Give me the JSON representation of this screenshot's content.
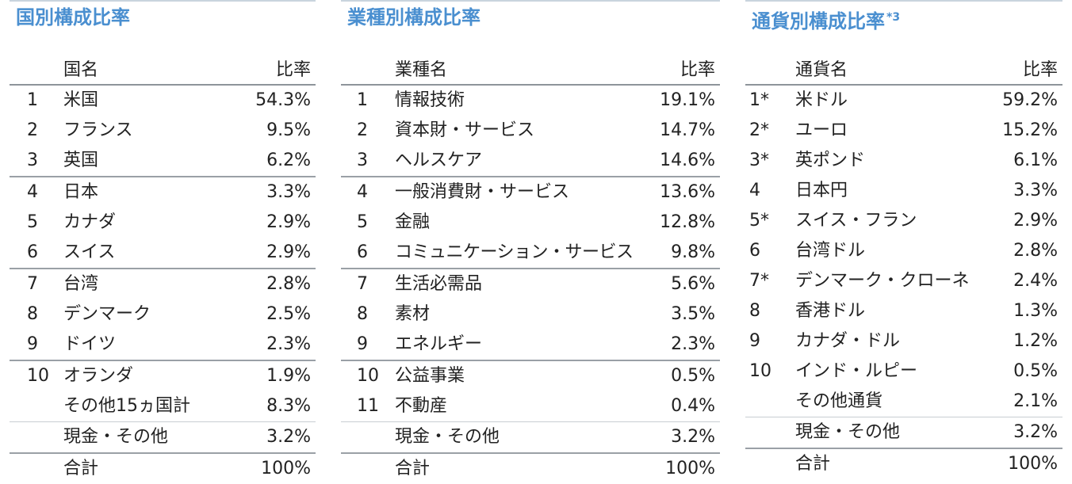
{
  "panels": [
    {
      "title": "国別構成比率",
      "title_note": "",
      "header": {
        "name": "国名",
        "ratio": "比率"
      },
      "rows": [
        {
          "rank": "1",
          "name": "米国",
          "ratio": "54.3%"
        },
        {
          "rank": "2",
          "name": "フランス",
          "ratio": "9.5%"
        },
        {
          "rank": "3",
          "name": "英国",
          "ratio": "6.2%"
        },
        {
          "rank": "4",
          "name": "日本",
          "ratio": "3.3%"
        },
        {
          "rank": "5",
          "name": "カナダ",
          "ratio": "2.9%"
        },
        {
          "rank": "6",
          "name": "スイス",
          "ratio": "2.9%"
        },
        {
          "rank": "7",
          "name": "台湾",
          "ratio": "2.8%"
        },
        {
          "rank": "8",
          "name": "デンマーク",
          "ratio": "2.5%"
        },
        {
          "rank": "9",
          "name": "ドイツ",
          "ratio": "2.3%"
        },
        {
          "rank": "10",
          "name": "オランダ",
          "ratio": "1.9%"
        },
        {
          "rank": "",
          "name": "その他15ヵ国計",
          "ratio": "8.3%"
        },
        {
          "rank": "",
          "name": "現金・その他",
          "ratio": "3.2%"
        },
        {
          "rank": "",
          "name": "合計",
          "ratio": "100%"
        }
      ]
    },
    {
      "title": "業種別構成比率",
      "title_note": "",
      "header": {
        "name": "業種名",
        "ratio": "比率"
      },
      "rows": [
        {
          "rank": "1",
          "name": "情報技術",
          "ratio": "19.1%"
        },
        {
          "rank": "2",
          "name": "資本財・サービス",
          "ratio": "14.7%"
        },
        {
          "rank": "3",
          "name": "ヘルスケア",
          "ratio": "14.6%"
        },
        {
          "rank": "4",
          "name": "一般消費財・サービス",
          "ratio": "13.6%"
        },
        {
          "rank": "5",
          "name": "金融",
          "ratio": "12.8%"
        },
        {
          "rank": "6",
          "name": "コミュニケーション・サービス",
          "ratio": "9.8%"
        },
        {
          "rank": "7",
          "name": "生活必需品",
          "ratio": "5.6%"
        },
        {
          "rank": "8",
          "name": "素材",
          "ratio": "3.5%"
        },
        {
          "rank": "9",
          "name": "エネルギー",
          "ratio": "2.3%"
        },
        {
          "rank": "10",
          "name": "公益事業",
          "ratio": "0.5%"
        },
        {
          "rank": "11",
          "name": "不動産",
          "ratio": "0.4%"
        },
        {
          "rank": "",
          "name": "現金・その他",
          "ratio": "3.2%"
        },
        {
          "rank": "",
          "name": "合計",
          "ratio": "100%"
        }
      ]
    },
    {
      "title": "通貨別構成比率",
      "title_note": "*3",
      "header": {
        "name": "通貨名",
        "ratio": "比率"
      },
      "rows": [
        {
          "rank": "1*",
          "name": "米ドル",
          "ratio": "59.2%"
        },
        {
          "rank": "2*",
          "name": "ユーロ",
          "ratio": "15.2%"
        },
        {
          "rank": "3*",
          "name": "英ポンド",
          "ratio": "6.1%"
        },
        {
          "rank": "4",
          "name": "日本円",
          "ratio": "3.3%"
        },
        {
          "rank": "5*",
          "name": "スイス・フラン",
          "ratio": "2.9%"
        },
        {
          "rank": "6",
          "name": "台湾ドル",
          "ratio": "2.8%"
        },
        {
          "rank": "7*",
          "name": "デンマーク・クローネ",
          "ratio": "2.4%"
        },
        {
          "rank": "8",
          "name": "香港ドル",
          "ratio": "1.3%"
        },
        {
          "rank": "9",
          "name": "カナダ・ドル",
          "ratio": "1.2%"
        },
        {
          "rank": "10",
          "name": "インド・ルピー",
          "ratio": "0.5%"
        },
        {
          "rank": "",
          "name": "その他通貨",
          "ratio": "2.1%"
        },
        {
          "rank": "",
          "name": "現金・その他",
          "ratio": "3.2%"
        },
        {
          "rank": "",
          "name": "合計",
          "ratio": "100%"
        }
      ]
    }
  ]
}
